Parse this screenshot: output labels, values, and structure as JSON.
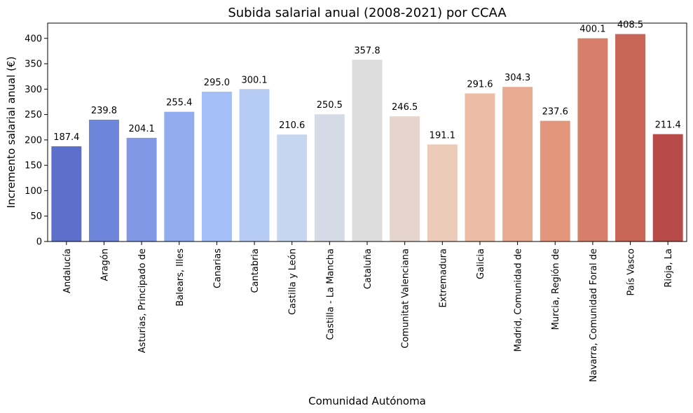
{
  "chart_data": {
    "type": "bar",
    "title": "Subida salarial anual (2008-2021) por CCAA",
    "xlabel": "Comunidad Autónoma",
    "ylabel": "Incremento salarial anual (€)",
    "categories": [
      "Andalucía",
      "Aragón",
      "Asturias, Principado de",
      "Balears, Illes",
      "Canarias",
      "Cantabria",
      "Castilla y León",
      "Castilla - La Mancha",
      "Cataluña",
      "Comunitat Valenciana",
      "Extremadura",
      "Galicia",
      "Madrid, Comunidad de",
      "Murcia, Región de",
      "Navarra, Comunidad Foral de",
      "País Vasco",
      "Rioja, La"
    ],
    "values": [
      187.4,
      239.8,
      204.1,
      255.4,
      295.0,
      300.1,
      210.6,
      250.5,
      357.8,
      246.5,
      191.1,
      291.6,
      304.3,
      237.6,
      400.1,
      408.5,
      211.4
    ],
    "value_labels": [
      "187.4",
      "239.8",
      "204.1",
      "255.4",
      "295.0",
      "300.1",
      "210.6",
      "250.5",
      "357.8",
      "246.5",
      "191.1",
      "291.6",
      "304.3",
      "237.6",
      "400.1",
      "408.5",
      "211.4"
    ],
    "colors": [
      "#5b6fcb",
      "#6d85da",
      "#8098e6",
      "#93acf0",
      "#a5bff8",
      "#b6ccf5",
      "#c7d6f0",
      "#d4dbe6",
      "#dddddd",
      "#e6d5cc",
      "#eccab8",
      "#ecbca4",
      "#e8aa90",
      "#e3967c",
      "#d77f6a",
      "#c86557",
      "#b84b48"
    ],
    "ylim": [
      0,
      430
    ],
    "yticks": [
      0,
      50,
      100,
      150,
      200,
      250,
      300,
      350,
      400
    ],
    "grid": false,
    "legend": "none"
  }
}
